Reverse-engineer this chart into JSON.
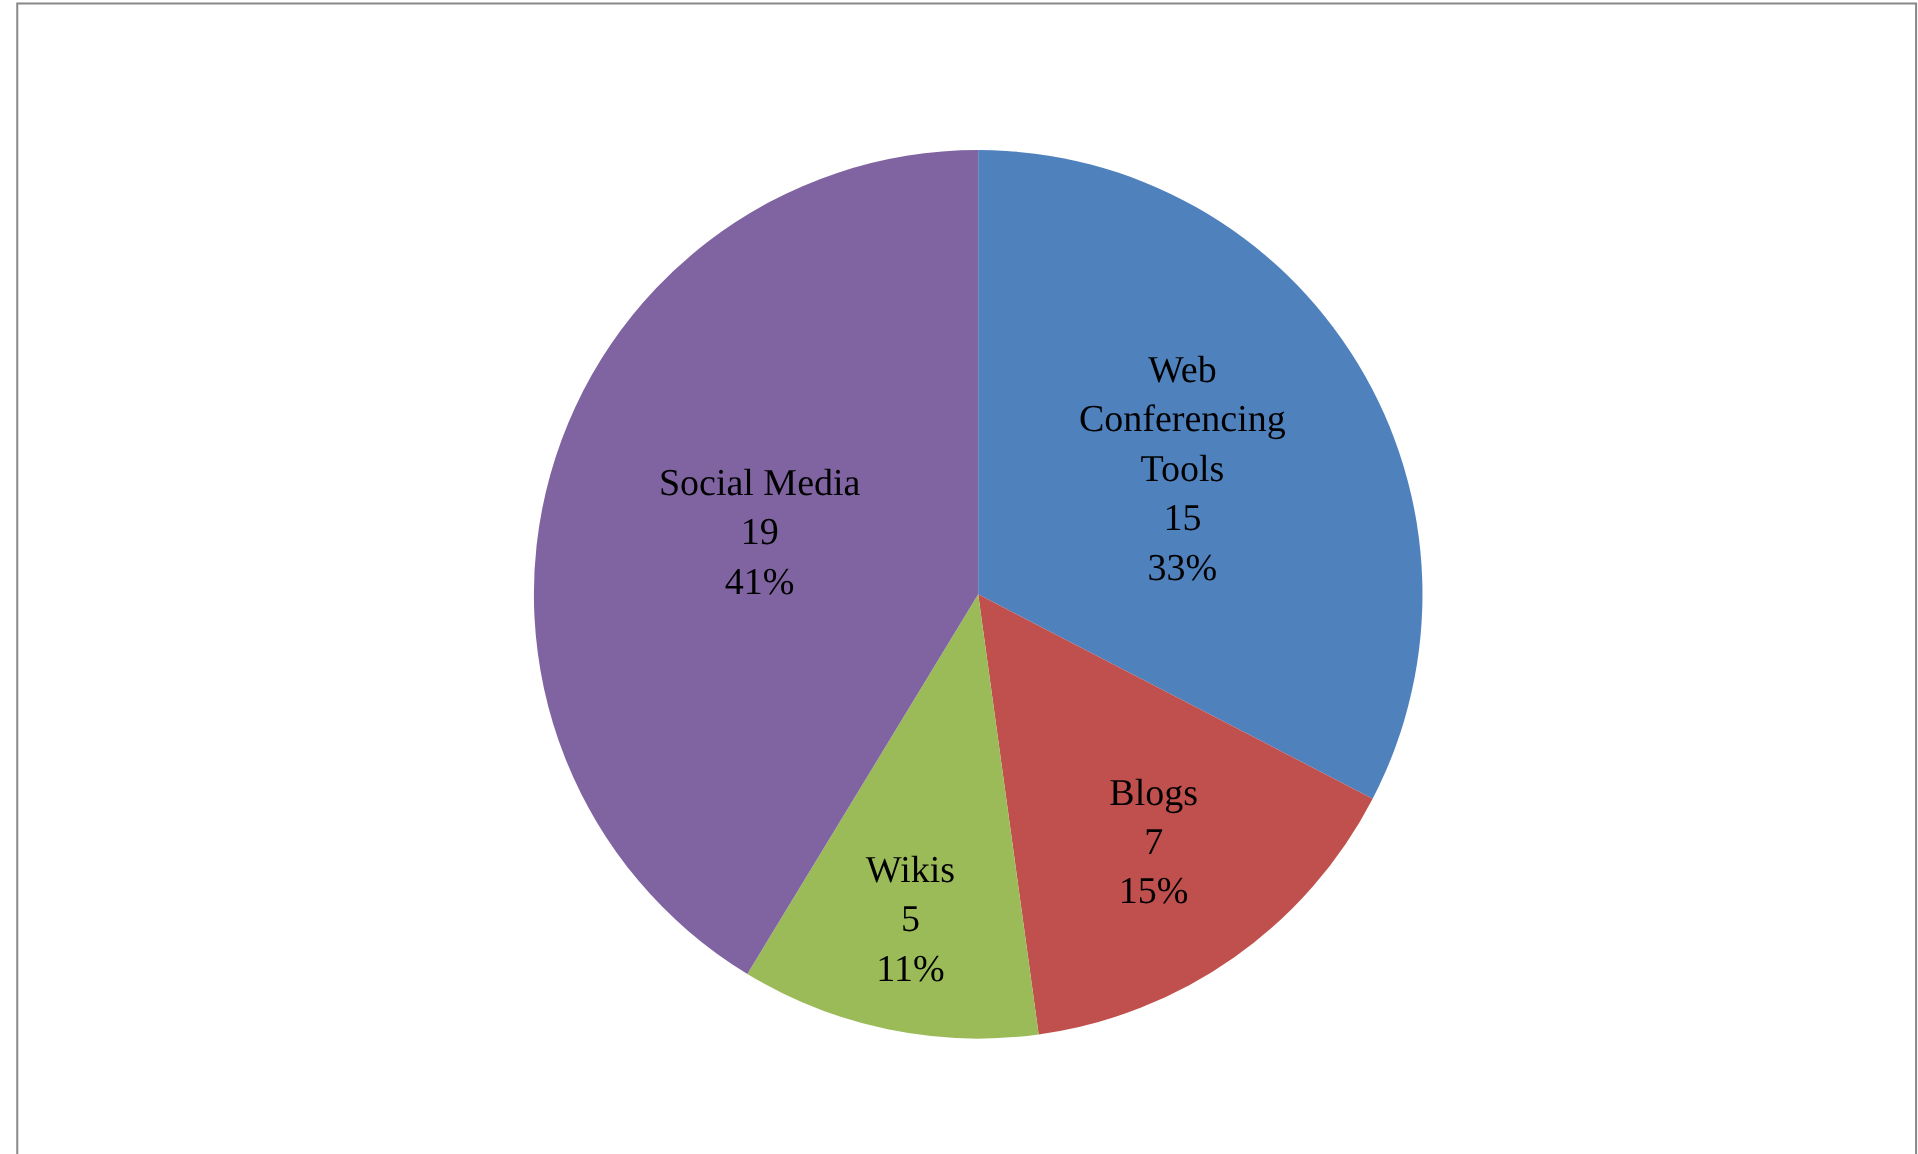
{
  "chart_data": {
    "type": "pie",
    "categories": [
      "Web Conferencing Tools",
      "Blogs",
      "Wikis",
      "Social Media"
    ],
    "values": [
      15,
      7,
      5,
      19
    ],
    "colors": [
      "#4f81bd",
      "#c0504d",
      "#9bbb59",
      "#8064a2"
    ],
    "value_labels": [
      "15\n33%",
      "7\n15%",
      "5\n11%",
      "19\n41%"
    ],
    "legend": false
  }
}
